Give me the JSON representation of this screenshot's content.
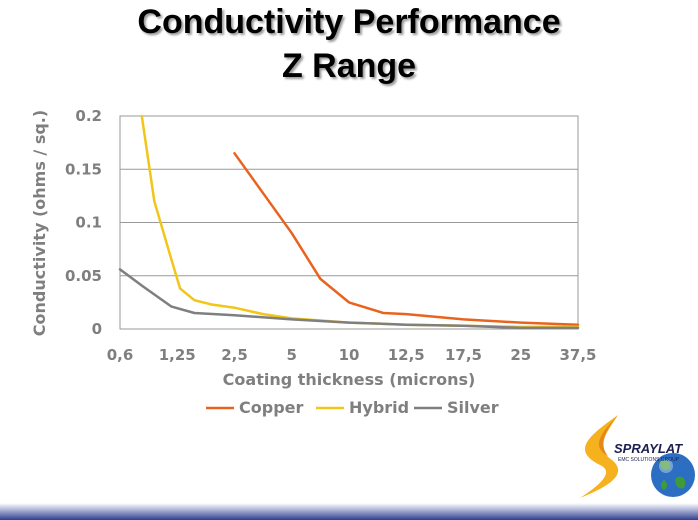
{
  "title_line1": "Conductivity Performance",
  "title_line2": "Z Range",
  "chart_data": {
    "type": "line",
    "x": [
      "0,6",
      "1,25",
      "2,5",
      "5",
      "10",
      "12,5",
      "17,5",
      "25",
      "37,5"
    ],
    "xlabel": "Coating thickness (microns)",
    "ylabel": "Conductivity (ohms / sq.)",
    "ylim": [
      0,
      0.2
    ],
    "yticks": [
      "0",
      "0.05",
      "0.1",
      "0.15",
      "0.2"
    ],
    "grid": "horizontal",
    "legend_position": "bottom",
    "series": [
      {
        "name": "Copper",
        "color": "#e8641e",
        "points": [
          [
            2,
            0.165
          ],
          [
            3,
            0.09
          ],
          [
            3.5,
            0.047
          ],
          [
            4,
            0.025
          ],
          [
            4.6,
            0.015
          ],
          [
            5,
            0.014
          ],
          [
            6,
            0.009
          ],
          [
            7,
            0.006
          ],
          [
            8,
            0.004
          ]
        ]
      },
      {
        "name": "Hybrid",
        "color": "#f2c618",
        "points": [
          [
            0.38,
            0.2
          ],
          [
            0.6,
            0.12
          ],
          [
            0.9,
            0.065
          ],
          [
            1.05,
            0.038
          ],
          [
            1.3,
            0.027
          ],
          [
            1.6,
            0.023
          ],
          [
            2,
            0.02
          ],
          [
            2.5,
            0.014
          ],
          [
            3,
            0.01
          ],
          [
            4,
            0.006
          ],
          [
            5,
            0.004
          ],
          [
            6,
            0.003
          ],
          [
            7,
            0.002
          ],
          [
            8,
            0.002
          ]
        ]
      },
      {
        "name": "Silver",
        "color": "#7f7f7f",
        "points": [
          [
            0,
            0.056
          ],
          [
            0.4,
            0.04
          ],
          [
            0.9,
            0.021
          ],
          [
            1.3,
            0.015
          ],
          [
            2,
            0.013
          ],
          [
            3,
            0.009
          ],
          [
            4,
            0.006
          ],
          [
            5,
            0.004
          ],
          [
            6,
            0.003
          ],
          [
            7,
            0.001
          ],
          [
            8,
            0.001
          ]
        ]
      }
    ]
  },
  "logo": {
    "name": "SPRAYLAT",
    "subtitle": "EMC SOLUTIONS GROUP"
  }
}
